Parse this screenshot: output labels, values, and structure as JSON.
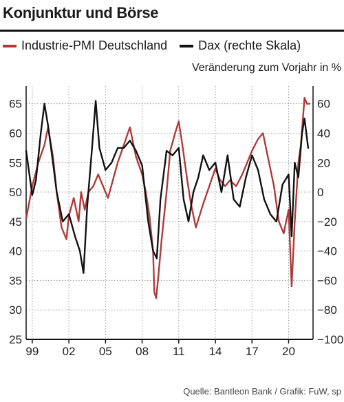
{
  "header": {
    "title": "Konjunktur und Börse"
  },
  "legend": {
    "pmi_label": "Industrie-PMI Deutschland",
    "dax_label": "Dax (rechte Skala)"
  },
  "unit_label": "Veränderung zum Vorjahr in %",
  "source": "Quelle: Bantleon Bank / Grafik: FuW, sp",
  "colors": {
    "pmi": "#b03a3a",
    "dax": "#111111",
    "grid": "#9a9a9a"
  },
  "chart_data": {
    "type": "line",
    "x_tick_labels": [
      "99",
      "02",
      "05",
      "08",
      "11",
      "14",
      "17",
      "20"
    ],
    "y_left": {
      "ticks": [
        "25",
        "30",
        "35",
        "40",
        "45",
        "50",
        "55",
        "60",
        "65"
      ],
      "range": [
        25,
        68
      ]
    },
    "y_right": {
      "ticks": [
        "−100",
        "−80",
        "−60",
        "−40",
        "−20",
        "0",
        "20",
        "40",
        "60"
      ],
      "range": [
        -100,
        72
      ]
    },
    "series": [
      {
        "name": "Industrie-PMI Deutschland",
        "axis": "left",
        "x": [
          1998.5,
          1999.0,
          1999.5,
          2000.0,
          2000.3,
          2000.7,
          2001.0,
          2001.4,
          2001.8,
          2002.0,
          2002.4,
          2002.8,
          2003.0,
          2003.3,
          2003.6,
          2004.0,
          2004.4,
          2004.8,
          2005.2,
          2005.6,
          2006.0,
          2006.5,
          2007.0,
          2007.5,
          2008.0,
          2008.3,
          2008.6,
          2008.9,
          2009.0,
          2009.15,
          2009.3,
          2009.6,
          2010.0,
          2010.3,
          2010.7,
          2011.0,
          2011.3,
          2011.7,
          2012.0,
          2012.4,
          2012.7,
          2013.0,
          2013.5,
          2014.0,
          2014.4,
          2014.8,
          2015.2,
          2015.7,
          2016.2,
          2016.6,
          2017.0,
          2017.5,
          2017.9,
          2018.3,
          2018.8,
          2019.2,
          2019.6,
          2020.0,
          2020.25,
          2020.5,
          2020.8,
          2021.0,
          2021.3,
          2021.5,
          2021.7
        ],
        "values": [
          45.5,
          51,
          55,
          58,
          61,
          56,
          50,
          44,
          42,
          46,
          49,
          45,
          50,
          47,
          50,
          51,
          53,
          51,
          49,
          52,
          55,
          58,
          61,
          56,
          53,
          50,
          46,
          40,
          33,
          32,
          35,
          42,
          50,
          57,
          60,
          62,
          58,
          52,
          48,
          44,
          46,
          48,
          51,
          54,
          52,
          51,
          52,
          51,
          53,
          55,
          57,
          59,
          60,
          56,
          51,
          45,
          43,
          47,
          34,
          45,
          55,
          58,
          66,
          65,
          65
        ]
      },
      {
        "name": "Dax (rechte Skala)",
        "axis": "right",
        "x": [
          1998.5,
          1999.0,
          1999.3,
          1999.7,
          2000.0,
          2000.3,
          2000.7,
          2001.0,
          2001.5,
          2002.0,
          2002.5,
          2002.9,
          2003.2,
          2003.5,
          2003.9,
          2004.2,
          2004.5,
          2005.0,
          2005.5,
          2006.0,
          2006.5,
          2007.0,
          2007.5,
          2008.0,
          2008.5,
          2008.9,
          2009.2,
          2009.5,
          2010.0,
          2010.5,
          2011.0,
          2011.4,
          2011.8,
          2012.2,
          2012.6,
          2013.0,
          2013.5,
          2014.0,
          2014.5,
          2015.0,
          2015.5,
          2016.0,
          2016.5,
          2017.0,
          2017.5,
          2018.0,
          2018.5,
          2019.0,
          2019.5,
          2020.0,
          2020.25,
          2020.5,
          2020.8,
          2021.1,
          2021.3,
          2021.6
        ],
        "values": [
          28,
          -2,
          8,
          40,
          60,
          45,
          20,
          0,
          -20,
          -15,
          -30,
          -40,
          -55,
          -10,
          30,
          62,
          30,
          15,
          20,
          30,
          30,
          35,
          28,
          18,
          -20,
          -40,
          -45,
          -5,
          28,
          25,
          30,
          -5,
          -20,
          0,
          10,
          25,
          15,
          20,
          0,
          25,
          -5,
          -10,
          10,
          25,
          15,
          -5,
          -15,
          -20,
          5,
          12,
          -30,
          20,
          10,
          40,
          50,
          30
        ]
      }
    ],
    "grid": true,
    "legend_position": "top-left"
  }
}
